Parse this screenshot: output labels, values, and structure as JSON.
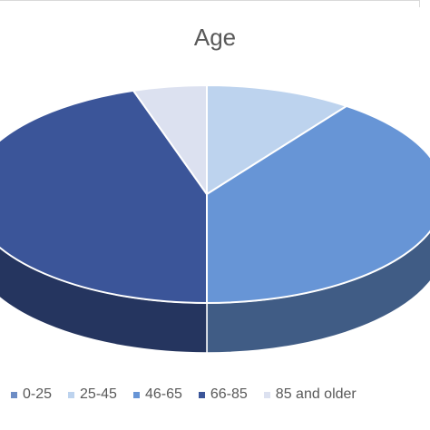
{
  "chart_data": {
    "type": "pie",
    "style": "3d",
    "title": "Age",
    "categories": [
      "0-25",
      "25-45",
      "46-65",
      "66-85",
      "85 and older"
    ],
    "values": [
      0.0,
      10.0,
      40.0,
      45.0,
      5.0
    ],
    "colors": [
      "#6d8dc5",
      "#bdd3ee",
      "#6795d6",
      "#3b5599",
      "#dce1f0"
    ],
    "legend_position": "bottom"
  }
}
